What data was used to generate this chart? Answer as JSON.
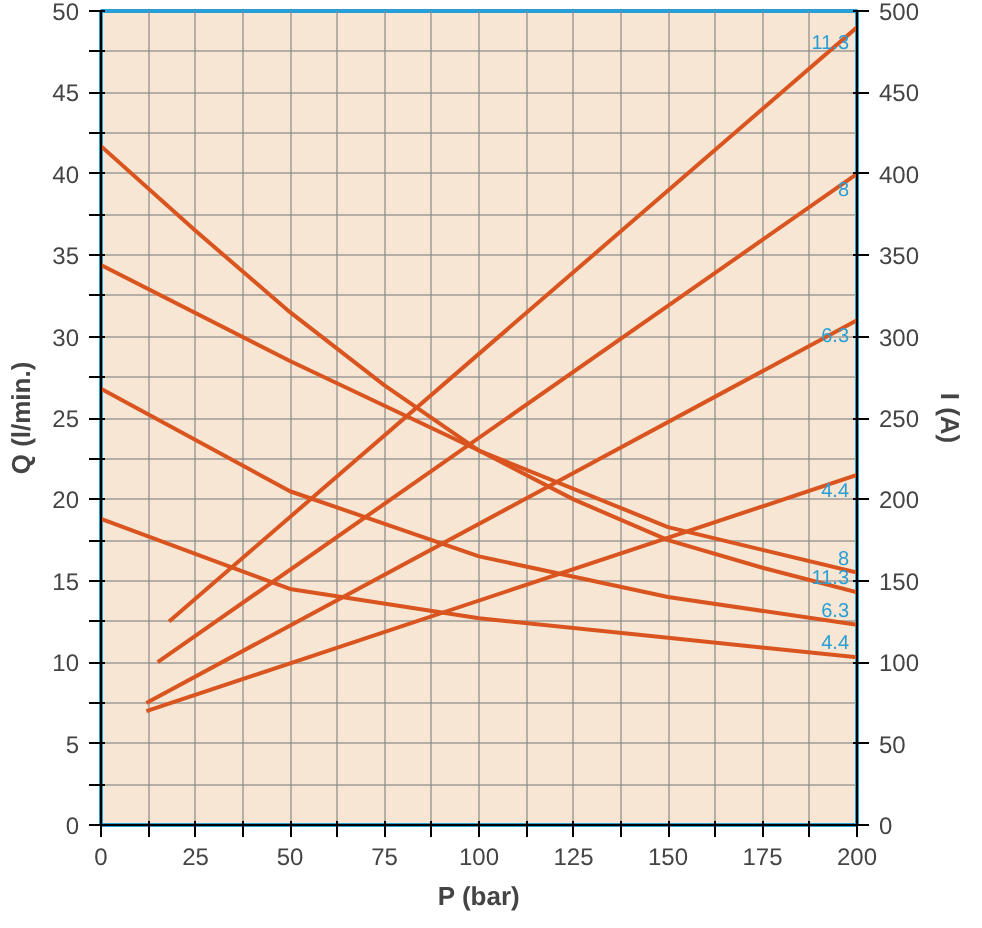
{
  "chart_data": {
    "type": "line",
    "xlabel": "P (bar)",
    "ylabel": "Q (l/min.)",
    "y2label": "I (A)",
    "xlim": [
      0,
      200
    ],
    "ylim": [
      0,
      50
    ],
    "y2lim": [
      0,
      500
    ],
    "xticks": [
      0,
      {
        "value": 12.5,
        "label": null
      },
      25,
      {
        "value": 37.5,
        "label": null
      },
      50,
      {
        "value": 62.5,
        "label": null
      },
      75,
      {
        "value": 87.5,
        "label": null
      },
      100,
      {
        "value": 112.5,
        "label": null
      },
      125,
      {
        "value": 137.5,
        "label": null
      },
      150,
      {
        "value": 162.5,
        "label": null
      },
      175,
      {
        "value": 187.5,
        "label": null
      },
      200
    ],
    "yticks": [
      0,
      {
        "value": 2.5,
        "label": null
      },
      5,
      {
        "value": 7.5,
        "label": null
      },
      10,
      {
        "value": 12.5,
        "label": null
      },
      15,
      {
        "value": 17.5,
        "label": null
      },
      20,
      {
        "value": 22.5,
        "label": null
      },
      25,
      {
        "value": 27.5,
        "label": null
      },
      30,
      {
        "value": 32.5,
        "label": null
      },
      35,
      {
        "value": 37.5,
        "label": null
      },
      40,
      {
        "value": 42.5,
        "label": null
      },
      45,
      {
        "value": 47.5,
        "label": null
      },
      50
    ],
    "y2ticks": [
      0,
      50,
      100,
      150,
      200,
      250,
      300,
      350,
      400,
      450,
      500
    ],
    "grid": true,
    "marker": "none",
    "line_style": "solid",
    "series": [
      {
        "name": "11.3",
        "color": "#d9541e",
        "x": [
          0,
          25,
          50,
          75,
          100,
          125,
          150,
          175,
          200
        ],
        "values": [
          41.7,
          36.5,
          31.5,
          27,
          23,
          20,
          17.5,
          15.8,
          14.3
        ]
      },
      {
        "name": "8",
        "color": "#d9541e",
        "x": [
          0,
          50,
          100,
          150,
          200
        ],
        "values": [
          34.4,
          28.5,
          23,
          18.3,
          15.5
        ]
      },
      {
        "name": "6.3",
        "color": "#d9541e",
        "x": [
          0,
          50,
          100,
          150,
          200
        ],
        "values": [
          26.8,
          20.5,
          16.5,
          14,
          12.3
        ]
      },
      {
        "name": "4.4",
        "color": "#d9541e",
        "x": [
          0,
          50,
          100,
          150,
          200
        ],
        "values": [
          18.8,
          14.5,
          12.7,
          11.5,
          10.3
        ]
      },
      {
        "name": "11.3",
        "color": "#d9541e",
        "axis": "y2",
        "x": [
          18,
          200
        ],
        "values": [
          125,
          490
        ]
      },
      {
        "name": "8",
        "color": "#d9541e",
        "axis": "y2",
        "x": [
          15,
          200
        ],
        "values": [
          100,
          400
        ]
      },
      {
        "name": "6.3",
        "color": "#d9541e",
        "axis": "y2",
        "x": [
          12,
          200
        ],
        "values": [
          75,
          310
        ]
      },
      {
        "name": "4.4",
        "color": "#d9541e",
        "axis": "y2",
        "x": [
          12,
          200
        ],
        "values": [
          70,
          215
        ]
      }
    ]
  }
}
